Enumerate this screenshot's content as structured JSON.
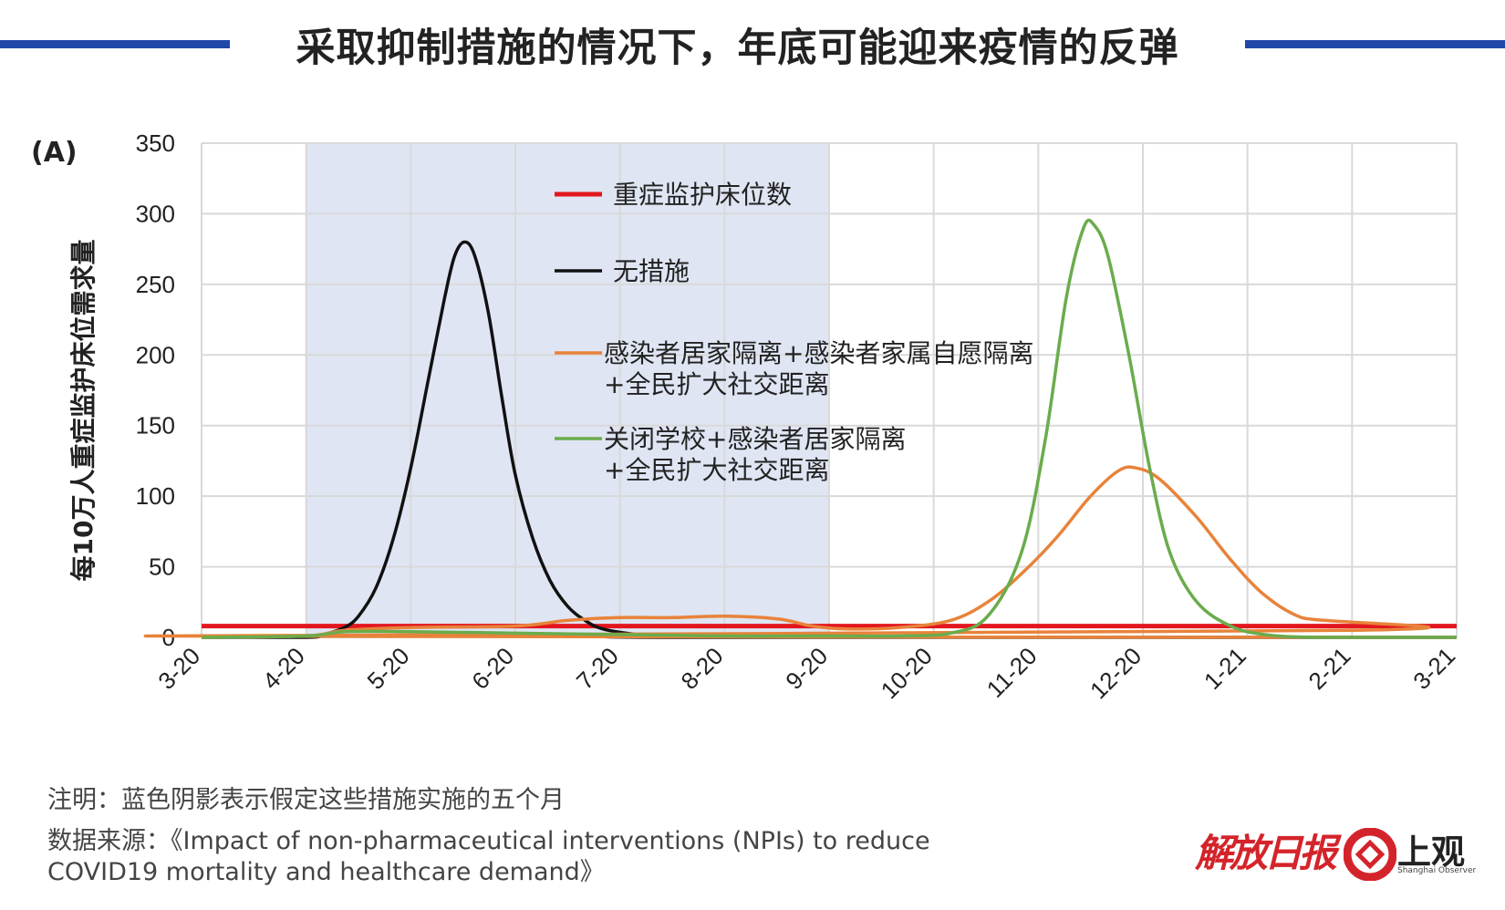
{
  "title": "采取抑制措施的情况下，年底可能迎来疫情的反弹",
  "panel_label": "(A)",
  "note": "注明：蓝色阴影表示假定这些措施实施的五个月",
  "source": "数据来源：《Impact of non-pharmaceutical interventions (NPIs) to reduce COVID19 mortality and healthcare demand》",
  "logos": {
    "left": "解放日报",
    "right": "上观",
    "right_sub": "Shanghai Observer"
  },
  "colors": {
    "accent": "#1f48a8",
    "logo_red": "#d4242b"
  },
  "chart_data": {
    "type": "line",
    "title": "",
    "xlabel": "",
    "ylabel": "每10万人重症监护床位需求量",
    "x_ticks": [
      "3-20",
      "4-20",
      "5-20",
      "6-20",
      "7-20",
      "8-20",
      "9-20",
      "10-20",
      "11-20",
      "12-20",
      "1-21",
      "2-21",
      "3-21"
    ],
    "ylim": [
      0,
      350
    ],
    "y_ticks": [
      0,
      50,
      100,
      150,
      200,
      250,
      300,
      350
    ],
    "grid": true,
    "shaded_region": {
      "x_start": "4-20",
      "x_end": "9-20",
      "color": "#dfe5f3",
      "meaning": "蓝色阴影表示假定这些措施实施的五个月"
    },
    "legend_position": "center",
    "series": [
      {
        "name": "重症监护床位数",
        "color": "#e3161e",
        "points": [
          [
            "3-20",
            8
          ],
          [
            "3-21",
            8
          ]
        ]
      },
      {
        "name": "无措施",
        "color": "#111111",
        "points": [
          [
            "3-20",
            0
          ],
          [
            "4-20",
            0
          ],
          [
            "4-25",
            2
          ],
          [
            "5-01",
            7
          ],
          [
            "5-05",
            15
          ],
          [
            "5-10",
            35
          ],
          [
            "5-15",
            70
          ],
          [
            "5-20",
            120
          ],
          [
            "5-25",
            180
          ],
          [
            "5-30",
            240
          ],
          [
            "6-02",
            270
          ],
          [
            "6-05",
            280
          ],
          [
            "6-08",
            270
          ],
          [
            "6-12",
            230
          ],
          [
            "6-16",
            170
          ],
          [
            "6-20",
            115
          ],
          [
            "6-25",
            70
          ],
          [
            "6-30",
            40
          ],
          [
            "7-05",
            22
          ],
          [
            "7-10",
            12
          ],
          [
            "7-15",
            6
          ],
          [
            "7-25",
            2
          ],
          [
            "8-05",
            0
          ],
          [
            "3-21",
            0
          ]
        ]
      },
      {
        "name": "感染者居家隔离+感染者家属自愿隔离+全民扩大社交距离",
        "color": "#e8833a",
        "points": [
          [
            "3-20",
            0
          ],
          [
            "4-20",
            1
          ],
          [
            "5-01",
            5
          ],
          [
            "5-20",
            7
          ],
          [
            "6-20",
            8
          ],
          [
            "7-05",
            12
          ],
          [
            "7-20",
            14
          ],
          [
            "8-05",
            14
          ],
          [
            "8-20",
            15
          ],
          [
            "9-05",
            13
          ],
          [
            "9-15",
            8
          ],
          [
            "9-25",
            6
          ],
          [
            "10-10",
            7
          ],
          [
            "10-25",
            12
          ],
          [
            "11-05",
            25
          ],
          [
            "11-15",
            45
          ],
          [
            "11-25",
            70
          ],
          [
            "12-05",
            100
          ],
          [
            "12-13",
            118
          ],
          [
            "12-18",
            120
          ],
          [
            "12-25",
            112
          ],
          [
            "1-05",
            85
          ],
          [
            "1-15",
            55
          ],
          [
            "1-25",
            30
          ],
          [
            "2-05",
            14
          ],
          [
            "2-20",
            5
          ],
          [
            "3-05",
            1
          ],
          [
            "3-21",
            0
          ]
        ]
      },
      {
        "name": "关闭学校+感染者居家隔离+全民扩大社交距离",
        "color": "#6aac4c",
        "points": [
          [
            "3-20",
            0
          ],
          [
            "4-20",
            1
          ],
          [
            "5-01",
            4
          ],
          [
            "5-20",
            4
          ],
          [
            "6-20",
            3
          ],
          [
            "7-20",
            2
          ],
          [
            "8-20",
            1
          ],
          [
            "9-20",
            1
          ],
          [
            "10-10",
            1
          ],
          [
            "10-25",
            3
          ],
          [
            "11-05",
            15
          ],
          [
            "11-15",
            60
          ],
          [
            "11-22",
            140
          ],
          [
            "11-28",
            240
          ],
          [
            "12-03",
            290
          ],
          [
            "12-06",
            292
          ],
          [
            "12-10",
            270
          ],
          [
            "12-16",
            200
          ],
          [
            "12-22",
            120
          ],
          [
            "12-28",
            60
          ],
          [
            "1-05",
            25
          ],
          [
            "1-15",
            8
          ],
          [
            "1-25",
            2
          ],
          [
            "2-10",
            0
          ],
          [
            "3-21",
            0
          ]
        ]
      }
    ]
  }
}
